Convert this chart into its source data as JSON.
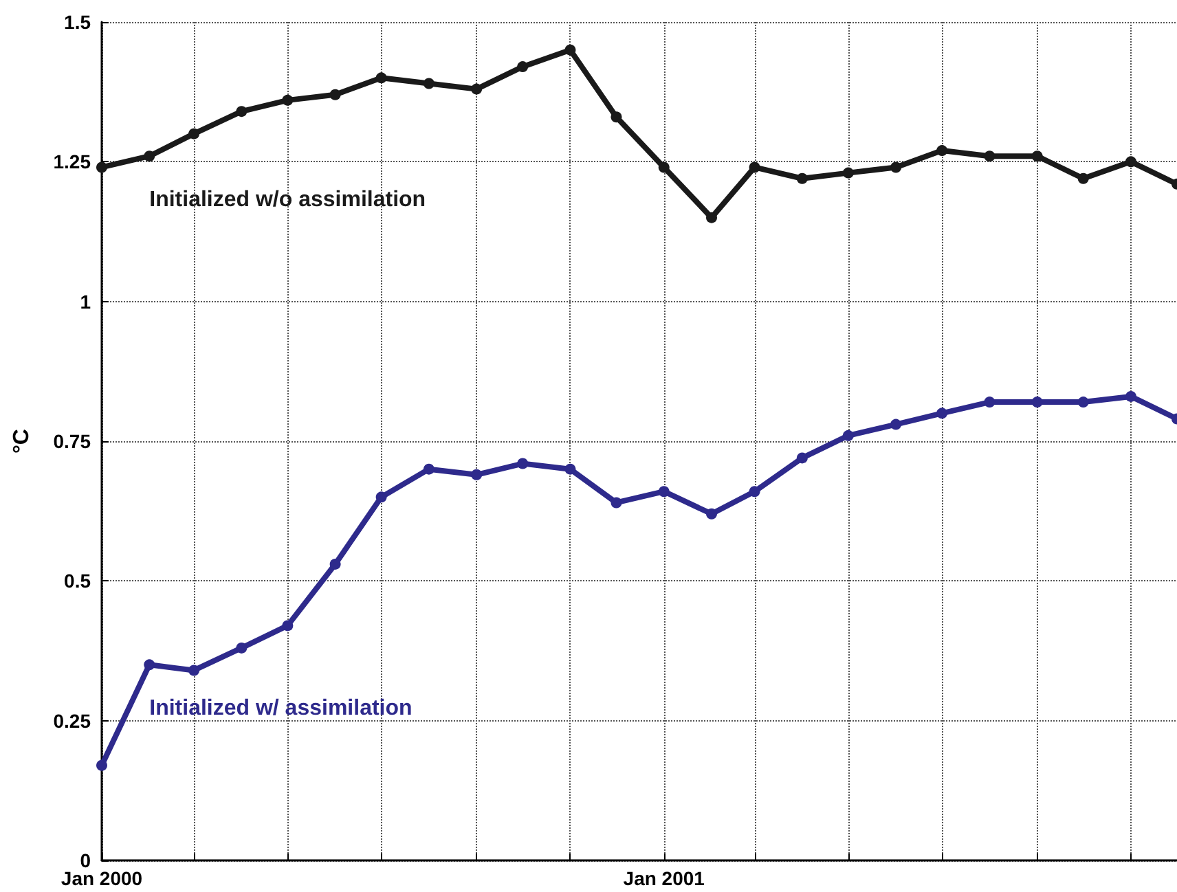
{
  "chart_data": {
    "type": "line",
    "ylabel": "°C",
    "x": [
      "2000-01",
      "2000-02",
      "2000-03",
      "2000-04",
      "2000-05",
      "2000-06",
      "2000-07",
      "2000-08",
      "2000-09",
      "2000-10",
      "2000-11",
      "2000-12",
      "2001-01",
      "2001-02",
      "2001-03",
      "2001-04",
      "2001-05",
      "2001-06",
      "2001-07",
      "2001-08",
      "2001-09",
      "2001-10",
      "2001-11",
      "2001-12"
    ],
    "series": [
      {
        "name": "Initialized w/o assimilation",
        "color": "#1a1a1a",
        "values": [
          1.24,
          1.26,
          1.3,
          1.34,
          1.36,
          1.37,
          1.4,
          1.39,
          1.38,
          1.42,
          1.45,
          1.33,
          1.24,
          1.15,
          1.24,
          1.22,
          1.23,
          1.24,
          1.27,
          1.26,
          1.26,
          1.22,
          1.25,
          1.21
        ]
      },
      {
        "name": "Initialized w/ assimilation",
        "color": "#2e2a8c",
        "values": [
          0.17,
          0.35,
          0.34,
          0.38,
          0.42,
          0.53,
          0.65,
          0.7,
          0.69,
          0.71,
          0.7,
          0.64,
          0.66,
          0.62,
          0.66,
          0.72,
          0.76,
          0.78,
          0.8,
          0.82,
          0.82,
          0.82,
          0.83,
          0.79
        ]
      }
    ],
    "xlim": [
      "2000-01",
      "2001-12"
    ],
    "xticks": [
      {
        "value": "2000-01",
        "label": "Jan 2000"
      },
      {
        "value": "2000-03",
        "label": null
      },
      {
        "value": "2000-05",
        "label": null
      },
      {
        "value": "2000-07",
        "label": null
      },
      {
        "value": "2000-09",
        "label": null
      },
      {
        "value": "2000-11",
        "label": null
      },
      {
        "value": "2001-01",
        "label": "Jan 2001"
      },
      {
        "value": "2001-03",
        "label": null
      },
      {
        "value": "2001-05",
        "label": null
      },
      {
        "value": "2001-07",
        "label": null
      },
      {
        "value": "2001-09",
        "label": null
      },
      {
        "value": "2001-11",
        "label": null
      }
    ],
    "ylim": [
      0,
      1.5
    ],
    "yticks": [
      0,
      0.25,
      0.5,
      0.75,
      1,
      1.25,
      1.5
    ],
    "grid": true,
    "marker": "circle",
    "line_style": "solid"
  }
}
